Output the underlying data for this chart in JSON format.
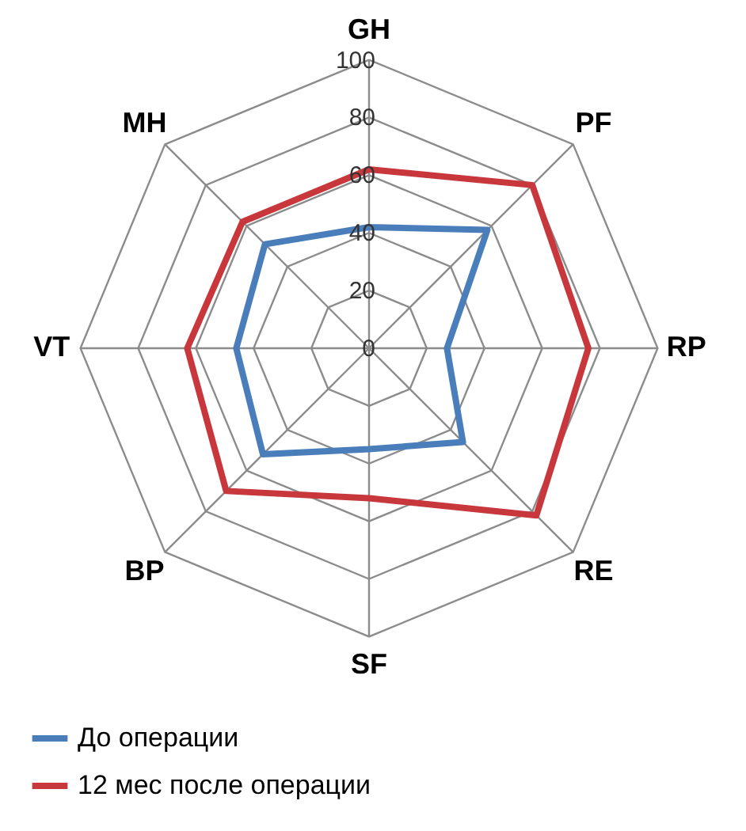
{
  "chart_data": {
    "type": "radar",
    "categories": [
      "GH",
      "PF",
      "RP",
      "RE",
      "SF",
      "BP",
      "VT",
      "MH"
    ],
    "ylim": [
      0,
      100
    ],
    "yticks": [
      0,
      20,
      40,
      60,
      80,
      100
    ],
    "grid": true,
    "legend": "bottom",
    "series": [
      {
        "name": "До операции",
        "color": "#4a7ebb",
        "values": [
          42,
          58,
          27,
          46,
          35,
          52,
          46,
          51
        ]
      },
      {
        "name": "12 мес после операции",
        "color": "#c8373c",
        "values": [
          62,
          80,
          76,
          82,
          52,
          70,
          63,
          62
        ]
      }
    ]
  }
}
